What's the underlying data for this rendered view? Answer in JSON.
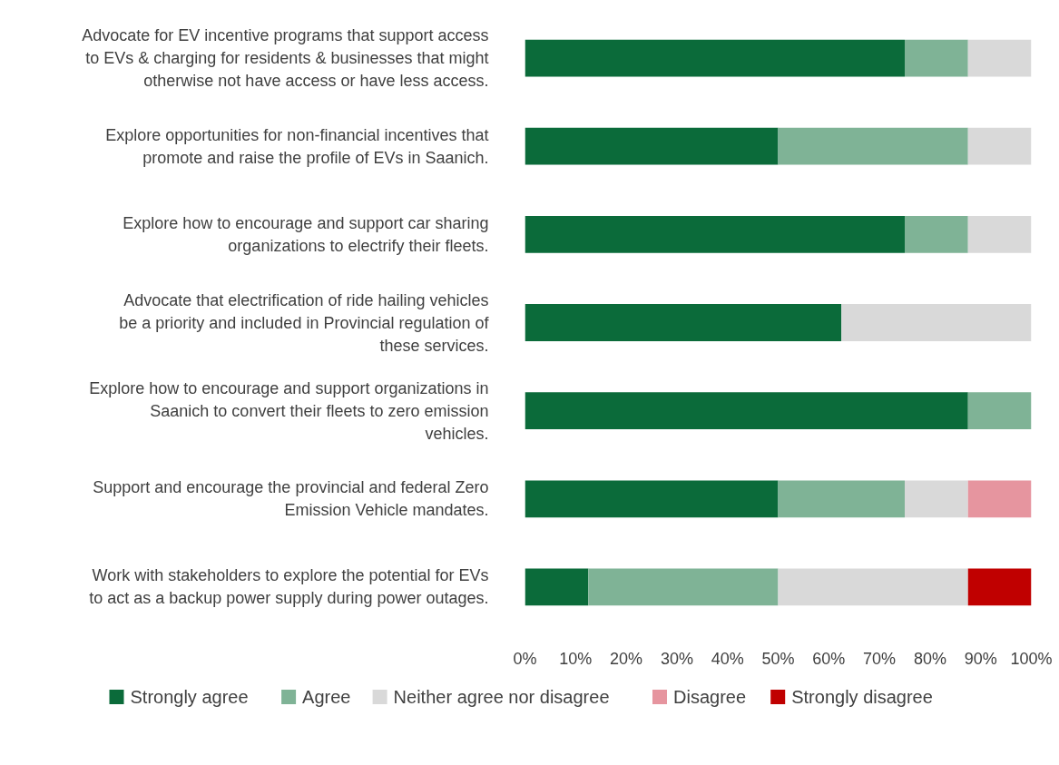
{
  "chart_data": {
    "type": "bar",
    "orientation": "horizontal",
    "stacked": true,
    "categories": [
      "Advocate for EV incentive programs that support access to EVs & charging for residents & businesses that might otherwise not have access or have less access.",
      "Explore opportunities for non-financial incentives that promote and raise the profile of EVs in Saanich.",
      "Explore how to encourage and support car sharing organizations to electrify their fleets.",
      "Advocate that electrification of ride hailing vehicles be a priority and included in Provincial regulation of these services.",
      "Explore how to encourage and support organizations in Saanich to convert their fleets to zero emission vehicles.",
      "Support and encourage the provincial and federal Zero Emission Vehicle mandates.",
      "Work with stakeholders to explore the potential for EVs to act as a backup power supply during power outages."
    ],
    "series": [
      {
        "name": "Strongly agree",
        "color": "#0b6b3a",
        "values": [
          75,
          50,
          75,
          62.5,
          87.5,
          50,
          12.5
        ]
      },
      {
        "name": "Agree",
        "color": "#7fb396",
        "values": [
          12.5,
          37.5,
          12.5,
          0,
          12.5,
          25,
          37.5
        ]
      },
      {
        "name": "Neither agree nor disagree",
        "color": "#d9d9d9",
        "values": [
          12.5,
          12.5,
          12.5,
          37.5,
          0,
          12.5,
          37.5
        ]
      },
      {
        "name": "Disagree",
        "color": "#e6959f",
        "values": [
          0,
          0,
          0,
          0,
          0,
          12.5,
          0
        ]
      },
      {
        "name": "Strongly disagree",
        "color": "#c00000",
        "values": [
          0,
          0,
          0,
          0,
          0,
          0,
          12.5
        ]
      }
    ],
    "xlim": [
      0,
      100
    ],
    "xticks": [
      {
        "value": 0,
        "label": "0%"
      },
      {
        "value": 10,
        "label": "10%"
      },
      {
        "value": 20,
        "label": "20%"
      },
      {
        "value": 30,
        "label": "30%"
      },
      {
        "value": 40,
        "label": "40%"
      },
      {
        "value": 50,
        "label": "50%"
      },
      {
        "value": 60,
        "label": "60%"
      },
      {
        "value": 70,
        "label": "70%"
      },
      {
        "value": 80,
        "label": "80%"
      },
      {
        "value": 90,
        "label": "90%"
      },
      {
        "value": 100,
        "label": "100%"
      }
    ],
    "grid": false,
    "legend": "bottom"
  }
}
